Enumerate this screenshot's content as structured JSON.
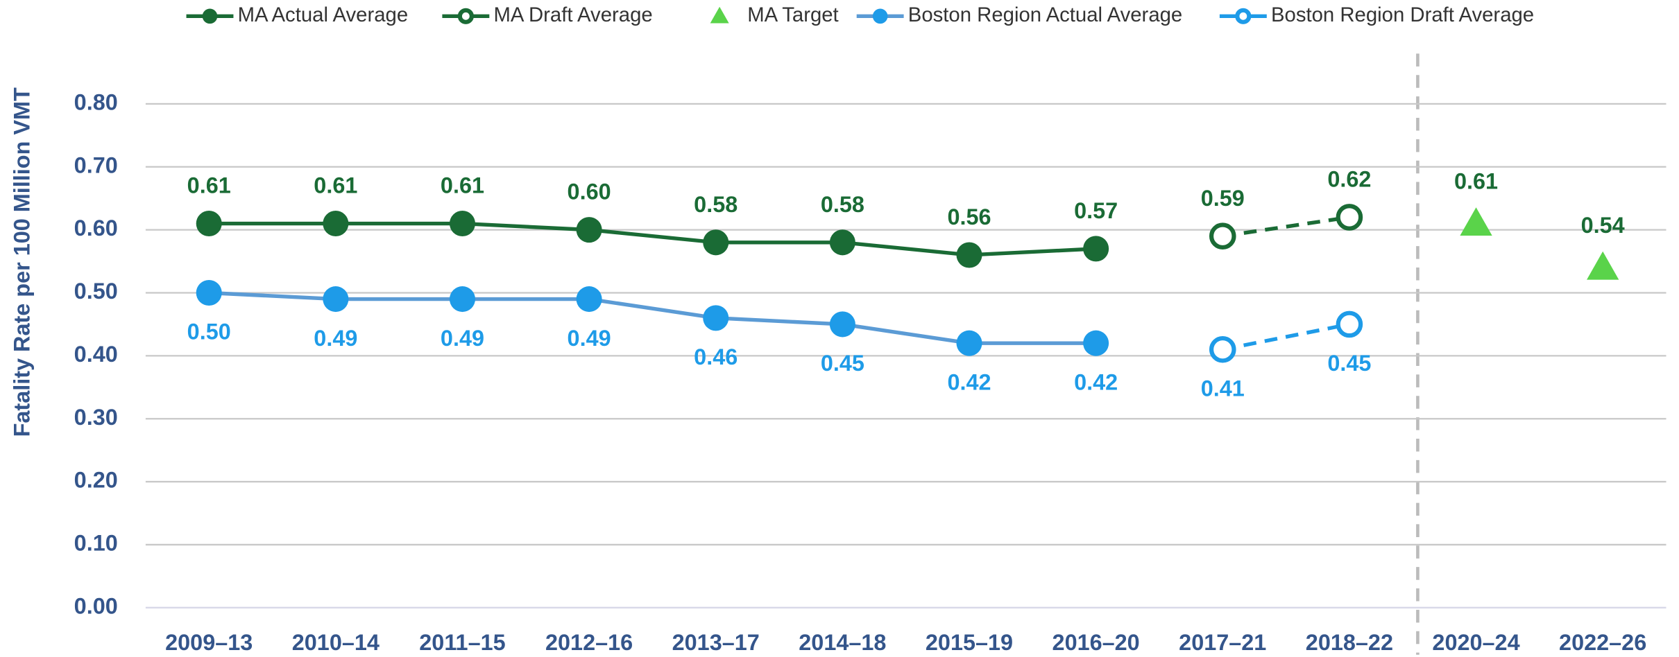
{
  "chart_data": {
    "type": "line",
    "y_label": "Fatality Rate per 100 Million VMT",
    "categories": [
      "2009–13",
      "2010–14",
      "2011–15",
      "2012–16",
      "2013–17",
      "2014–18",
      "2015–19",
      "2016–20",
      "2017–21",
      "2018–22",
      "2020–24",
      "2022–26"
    ],
    "series": [
      {
        "name": "MA Actual Average",
        "color": "#1a6b35",
        "marker": "filled",
        "dashed": false,
        "label_side": "above",
        "values": [
          0.61,
          0.61,
          0.61,
          0.6,
          0.58,
          0.58,
          0.56,
          0.57,
          null,
          null,
          null,
          null
        ],
        "value_labels": [
          "0.61",
          "0.61",
          "0.61",
          "0.60",
          "0.58",
          "0.58",
          "0.56",
          "0.57",
          null,
          null,
          null,
          null
        ]
      },
      {
        "name": "MA Draft Average",
        "color": "#1a6b35",
        "marker": "open",
        "dashed": true,
        "label_side": "above",
        "values": [
          null,
          null,
          null,
          null,
          null,
          null,
          null,
          null,
          0.59,
          0.62,
          null,
          null
        ],
        "value_labels": [
          null,
          null,
          null,
          null,
          null,
          null,
          null,
          null,
          "0.59",
          "0.62",
          null,
          null
        ]
      },
      {
        "name": "MA Target",
        "color": "#5ad34a",
        "label_color": "#1a6b35",
        "marker": "triangle",
        "dashed": false,
        "label_side": "above",
        "values": [
          null,
          null,
          null,
          null,
          null,
          null,
          null,
          null,
          null,
          null,
          0.61,
          0.54
        ],
        "value_labels": [
          null,
          null,
          null,
          null,
          null,
          null,
          null,
          null,
          null,
          null,
          "0.61",
          "0.54"
        ]
      },
      {
        "name": "Boston Region Actual Average",
        "color": "#1e9be8",
        "line_color": "#5b9bd5",
        "marker": "filled",
        "dashed": false,
        "label_side": "below",
        "values": [
          0.5,
          0.49,
          0.49,
          0.49,
          0.46,
          0.45,
          0.42,
          0.42,
          null,
          null,
          null,
          null
        ],
        "value_labels": [
          "0.50",
          "0.49",
          "0.49",
          "0.49",
          "0.46",
          "0.45",
          "0.42",
          "0.42",
          null,
          null,
          null,
          null
        ]
      },
      {
        "name": "Boston Region Draft Average",
        "color": "#1e9be8",
        "marker": "open",
        "dashed": true,
        "label_side": "below",
        "values": [
          null,
          null,
          null,
          null,
          null,
          null,
          null,
          null,
          0.41,
          0.45,
          null,
          null
        ],
        "value_labels": [
          null,
          null,
          null,
          null,
          null,
          null,
          null,
          null,
          "0.41",
          "0.45",
          null,
          null
        ]
      }
    ],
    "ylim": [
      0,
      0.8
    ],
    "yticks": [
      {
        "value": 0,
        "label": "0.00"
      },
      {
        "value": 0.1,
        "label": "0.10"
      },
      {
        "value": 0.2,
        "label": "0.20"
      },
      {
        "value": 0.3,
        "label": "0.30"
      },
      {
        "value": 0.4,
        "label": "0.40"
      },
      {
        "value": 0.5,
        "label": "0.50"
      },
      {
        "value": 0.6,
        "label": "0.60"
      },
      {
        "value": 0.7,
        "label": "0.70"
      },
      {
        "value": 0.8,
        "label": "0.80"
      }
    ],
    "grid": true,
    "legend": "top"
  }
}
